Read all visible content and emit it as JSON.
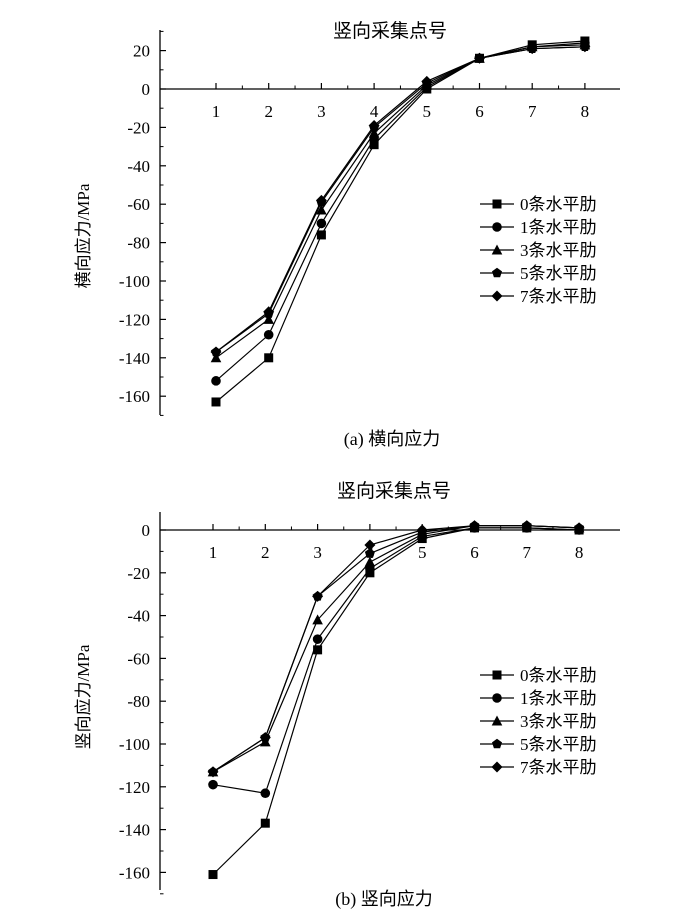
{
  "chart_data": [
    {
      "type": "line",
      "title": "竖向采集点号",
      "caption": "(a) 横向应力",
      "xlabel": "竖向采集点号",
      "ylabel": "横向应力/MPa",
      "categories": [
        "1",
        "2",
        "3",
        "4",
        "5",
        "6",
        "7",
        "8"
      ],
      "ylim": [
        -170,
        30
      ],
      "yticks": [
        20,
        0,
        -20,
        -40,
        -60,
        -80,
        -100,
        -120,
        -140,
        -160
      ],
      "legend_position": "right",
      "series": [
        {
          "name": "0条水平肋",
          "marker": "square",
          "values": [
            -163,
            -140,
            -76,
            -29,
            0,
            16,
            23,
            25
          ]
        },
        {
          "name": "1条水平肋",
          "marker": "circle",
          "values": [
            -152,
            -128,
            -70,
            -26,
            1,
            16,
            22,
            24
          ]
        },
        {
          "name": "3条水平肋",
          "marker": "triangle",
          "values": [
            -140,
            -120,
            -63,
            -23,
            2,
            16,
            22,
            23
          ]
        },
        {
          "name": "5条水平肋",
          "marker": "pentagon",
          "values": [
            -137,
            -117,
            -59,
            -20,
            3,
            16,
            21,
            22
          ]
        },
        {
          "name": "7条水平肋",
          "marker": "diamond",
          "values": [
            -137,
            -116,
            -58,
            -19,
            4,
            16,
            21,
            22
          ]
        }
      ]
    },
    {
      "type": "line",
      "title": "竖向采集点号",
      "caption": "(b) 竖向应力",
      "xlabel": "竖向采集点号",
      "ylabel": "竖向应力/MPa",
      "categories": [
        "1",
        "2",
        "3",
        "4",
        "5",
        "6",
        "7",
        "8"
      ],
      "ylim": [
        -170,
        10
      ],
      "yticks": [
        0,
        -20,
        -40,
        -60,
        -80,
        -100,
        -120,
        -140,
        -160
      ],
      "legend_position": "right",
      "series": [
        {
          "name": "0条水平肋",
          "marker": "square",
          "values": [
            -161,
            -137,
            -56,
            -20,
            -4,
            1,
            1,
            0
          ]
        },
        {
          "name": "1条水平肋",
          "marker": "circle",
          "values": [
            -119,
            -123,
            -51,
            -18,
            -3,
            1,
            1,
            0
          ]
        },
        {
          "name": "3条水平肋",
          "marker": "triangle",
          "values": [
            -113,
            -99,
            -42,
            -15,
            -2,
            2,
            2,
            1
          ]
        },
        {
          "name": "5条水平肋",
          "marker": "pentagon",
          "values": [
            -113,
            -97,
            -31,
            -11,
            -1,
            2,
            2,
            1
          ]
        },
        {
          "name": "7条水平肋",
          "marker": "diamond",
          "values": [
            -113,
            -97,
            -31,
            -7,
            0,
            2,
            2,
            1
          ]
        }
      ]
    }
  ]
}
